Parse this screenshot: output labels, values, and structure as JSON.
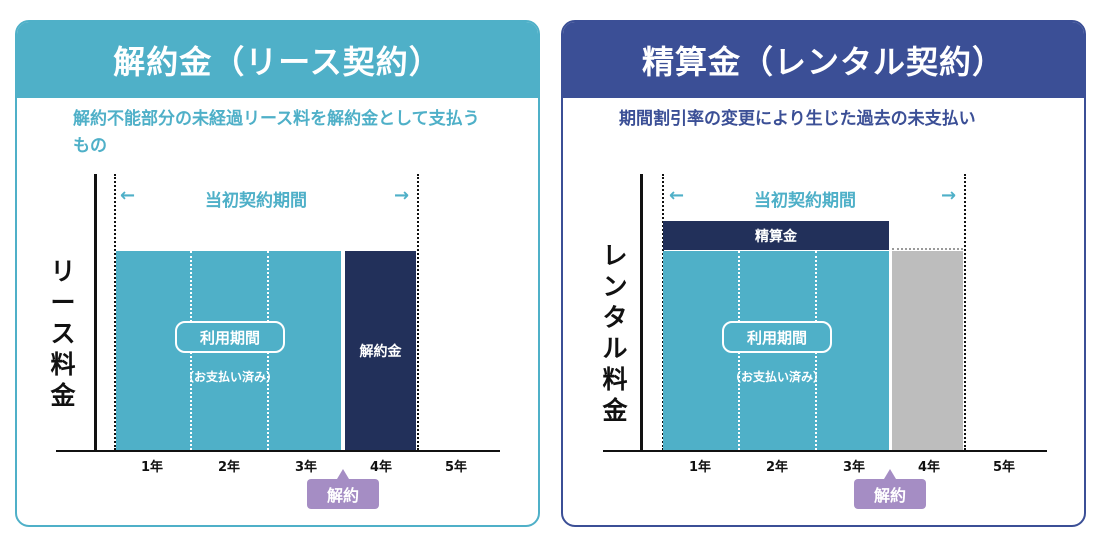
{
  "left_panel": {
    "title": "解約金（リース契約）",
    "description": "解約不能部分の未経過リース料を解約金として支払うもの",
    "y_label_chars": [
      "リ",
      "ー",
      "ス",
      "料",
      "金"
    ],
    "period_label": "当初契約期間",
    "arrow_left": "←",
    "arrow_right": "→",
    "usage_label": "利用期間",
    "usage_sub": "（お支払い済み）",
    "fee_label": "解約金",
    "years": [
      "1年",
      "2年",
      "3年",
      "4年",
      "5年"
    ],
    "cancel_label": "解約",
    "colors": {
      "accent": "#4fb0c8",
      "fee": "#22305a",
      "cancel": "#a58dc4"
    }
  },
  "right_panel": {
    "title": "精算金（レンタル契約）",
    "description": "期間割引率の変更により生じた過去の未支払い",
    "y_label_chars": [
      "レ",
      "ン",
      "タ",
      "ル",
      "料",
      "金"
    ],
    "period_label": "当初契約期間",
    "arrow_left": "←",
    "arrow_right": "→",
    "usage_label": "利用期間",
    "usage_sub": "（お支払い済み）",
    "fee_label": "精算金",
    "years": [
      "1年",
      "2年",
      "3年",
      "4年",
      "5年"
    ],
    "cancel_label": "解約",
    "colors": {
      "accent": "#3b4f96",
      "fee": "#22305a",
      "unused": "#bdbdbd",
      "cancel": "#a58dc4"
    }
  }
}
